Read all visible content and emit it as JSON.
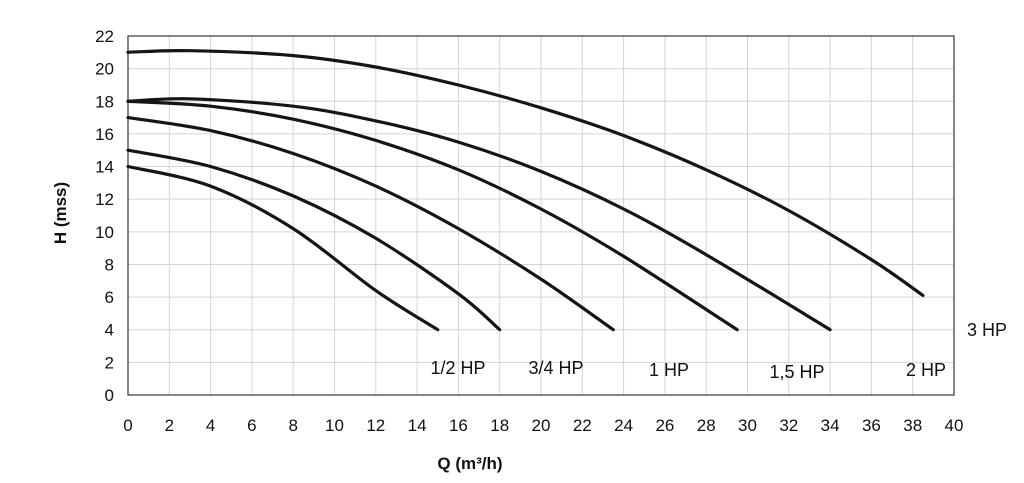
{
  "chart_data": {
    "type": "line",
    "title": "",
    "xlabel": "Q (m³/h)",
    "ylabel": "H (mss)",
    "xlim": [
      0,
      40
    ],
    "ylim": [
      0,
      22
    ],
    "xticks": [
      "0",
      "2",
      "4",
      "6",
      "8",
      "10",
      "12",
      "14",
      "16",
      "18",
      "20",
      "22",
      "24",
      "26",
      "28",
      "30",
      "32",
      "34",
      "36",
      "38",
      "40"
    ],
    "yticks": [
      "0",
      "2",
      "4",
      "6",
      "8",
      "10",
      "12",
      "14",
      "16",
      "18",
      "20",
      "22"
    ],
    "grid": true,
    "legend": "none",
    "series": [
      {
        "name": "1/2 HP",
        "x": [
          0,
          4,
          8,
          12,
          15
        ],
        "y": [
          14,
          12.8,
          10.2,
          6.4,
          4
        ]
      },
      {
        "name": "3/4 HP",
        "x": [
          0,
          4,
          8,
          12,
          16,
          18
        ],
        "y": [
          15,
          14,
          12.2,
          9.6,
          6.2,
          4
        ]
      },
      {
        "name": "1 HP",
        "x": [
          0,
          4,
          8,
          12,
          16,
          20,
          23.5
        ],
        "y": [
          17,
          16.2,
          14.8,
          12.8,
          10.2,
          7.1,
          4
        ]
      },
      {
        "name": "1,5 HP",
        "x": [
          0,
          4,
          8,
          12,
          16,
          20,
          24,
          29.5
        ],
        "y": [
          18,
          17.7,
          16.9,
          15.6,
          13.8,
          11.4,
          8.5,
          4
        ]
      },
      {
        "name": "2 HP",
        "x": [
          0,
          3,
          8,
          12,
          16,
          20,
          24,
          28,
          34
        ],
        "y": [
          18,
          18.15,
          17.7,
          16.8,
          15.5,
          13.7,
          11.4,
          8.6,
          4
        ]
      },
      {
        "name": "3 HP",
        "x": [
          0,
          3,
          8,
          12,
          16,
          20,
          24,
          28,
          32,
          36,
          38.5
        ],
        "y": [
          21,
          21.1,
          20.8,
          20.1,
          19.0,
          17.6,
          15.9,
          13.8,
          11.3,
          8.3,
          6.1
        ]
      }
    ]
  }
}
